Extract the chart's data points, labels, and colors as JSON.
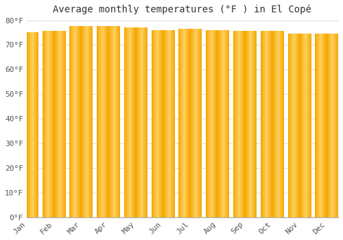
{
  "title": "Average monthly temperatures (°F ) in El Copé",
  "months": [
    "Jan",
    "Feb",
    "Mar",
    "Apr",
    "May",
    "Jun",
    "Jul",
    "Aug",
    "Sep",
    "Oct",
    "Nov",
    "Dec"
  ],
  "values": [
    75.0,
    75.5,
    77.5,
    77.5,
    77.0,
    76.0,
    76.5,
    76.0,
    75.5,
    75.5,
    74.5,
    74.5
  ],
  "bar_color_outer": "#F5A800",
  "bar_color_inner": "#FFD060",
  "background_color": "#ffffff",
  "plot_bg_color": "#ffffff",
  "ylim": [
    0,
    80
  ],
  "yticks": [
    0,
    10,
    20,
    30,
    40,
    50,
    60,
    70,
    80
  ],
  "grid_color": "#dddddd",
  "title_fontsize": 10,
  "tick_fontsize": 8,
  "bar_width": 0.85
}
